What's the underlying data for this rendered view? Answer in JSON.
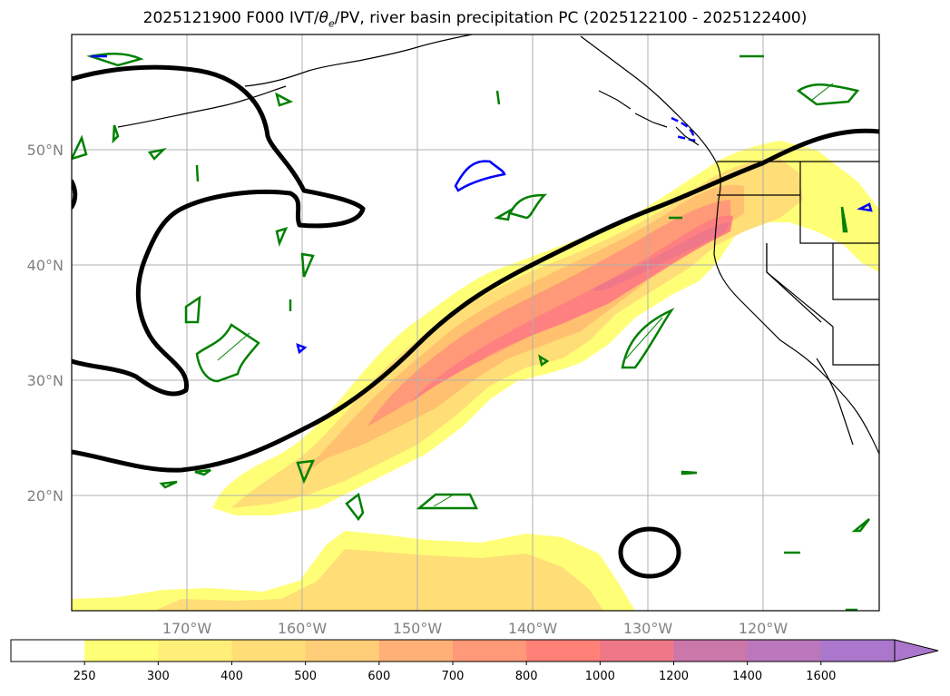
{
  "title": "2025121900 F000 IVT/θe/PV, river basin precipitation PC (2025122100 - 2025122400)",
  "title_parts": {
    "before": "2025121900 F000 IVT/",
    "theta": "θ",
    "sub": "e",
    "after": "/PV, river basin precipitation PC (2025122100 - 2025122400)"
  },
  "map": {
    "lon_range": [
      -180,
      -110
    ],
    "lat_range": [
      10,
      60
    ],
    "lat_labels": [
      "20°N",
      "30°N",
      "40°N",
      "50°N"
    ],
    "lon_labels": [
      "170°W",
      "160°W",
      "150°W",
      "140°W",
      "130°W",
      "120°W"
    ],
    "grid": true
  },
  "colorbar": {
    "labels": [
      "250",
      "300",
      "400",
      "500",
      "600",
      "700",
      "800",
      "1000",
      "1200",
      "1400",
      "1600"
    ],
    "colors": [
      "#ffffff",
      "#ffff77",
      "#ffee77",
      "#ffdd77",
      "#ffcc77",
      "#ffb077",
      "#ff9977",
      "#ff8077",
      "#ee7788",
      "#cc77aa",
      "#bb77bb",
      "#aa77cc"
    ],
    "extend": "max"
  },
  "colors": {
    "ivt_fill": [
      "#ffff77",
      "#ffdd77",
      "#ffc070",
      "#ff9977",
      "#ff8080",
      "#ee7788"
    ],
    "theta_e_contour": "#000000",
    "pv_positive": "#008000",
    "pv_negative": "#0000ff",
    "coastline": "#000000",
    "gridline": "#b0b0b0"
  }
}
